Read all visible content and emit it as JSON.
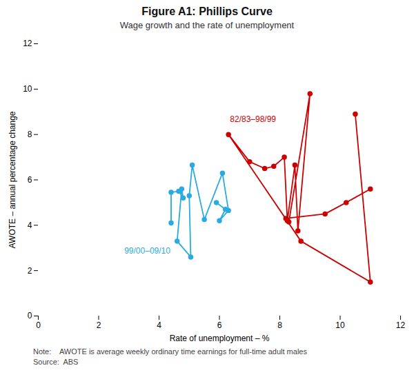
{
  "chart_data": {
    "type": "line",
    "title": "Figure A1: Phillips Curve",
    "subtitle": "Wage growth and the rate of unemployment",
    "xlabel": "Rate of unemployment – %",
    "ylabel": "AWOTE – annual percentage change",
    "xlim": [
      0,
      12
    ],
    "ylim": [
      0,
      12
    ],
    "xticks": [
      0,
      2,
      4,
      6,
      8,
      10,
      12
    ],
    "yticks": [
      0,
      2,
      4,
      6,
      8,
      10,
      12
    ],
    "grid": false,
    "note": "Note:    AWOTE is average weekly ordinary time earnings for full-time adult males",
    "source": "Source:  ABS",
    "series": [
      {
        "name": "82/83–98/99",
        "color": "#CC0000",
        "marker": "circle",
        "line_style": "solid",
        "x": [
          10.5,
          11.0,
          8.7,
          6.3,
          7.0,
          7.5,
          7.8,
          8.15,
          8.25,
          8.5,
          8.6,
          9.0,
          8.3,
          8.2,
          9.5,
          10.2,
          11.0
        ],
        "values": [
          8.9,
          1.5,
          3.3,
          8.0,
          6.8,
          6.5,
          6.6,
          7.0,
          4.2,
          6.65,
          3.75,
          9.8,
          4.15,
          4.3,
          4.5,
          5.0,
          5.6
        ],
        "label_x": 6.35,
        "label_y": 8.55
      },
      {
        "name": "99/00–09/10",
        "color": "#29ABE2",
        "marker": "circle",
        "line_style": "solid",
        "x": [
          4.4,
          4.4,
          4.65,
          4.8,
          4.75,
          4.6,
          5.05,
          5.0,
          5.1,
          5.5,
          6.1,
          6.3,
          6.0,
          6.2,
          5.9
        ],
        "values": [
          4.1,
          5.45,
          5.5,
          5.2,
          5.6,
          3.3,
          2.6,
          5.3,
          6.65,
          4.25,
          6.3,
          4.65,
          4.2,
          4.7,
          5.0
        ],
        "label_x": 2.85,
        "label_y": 2.75
      }
    ]
  }
}
